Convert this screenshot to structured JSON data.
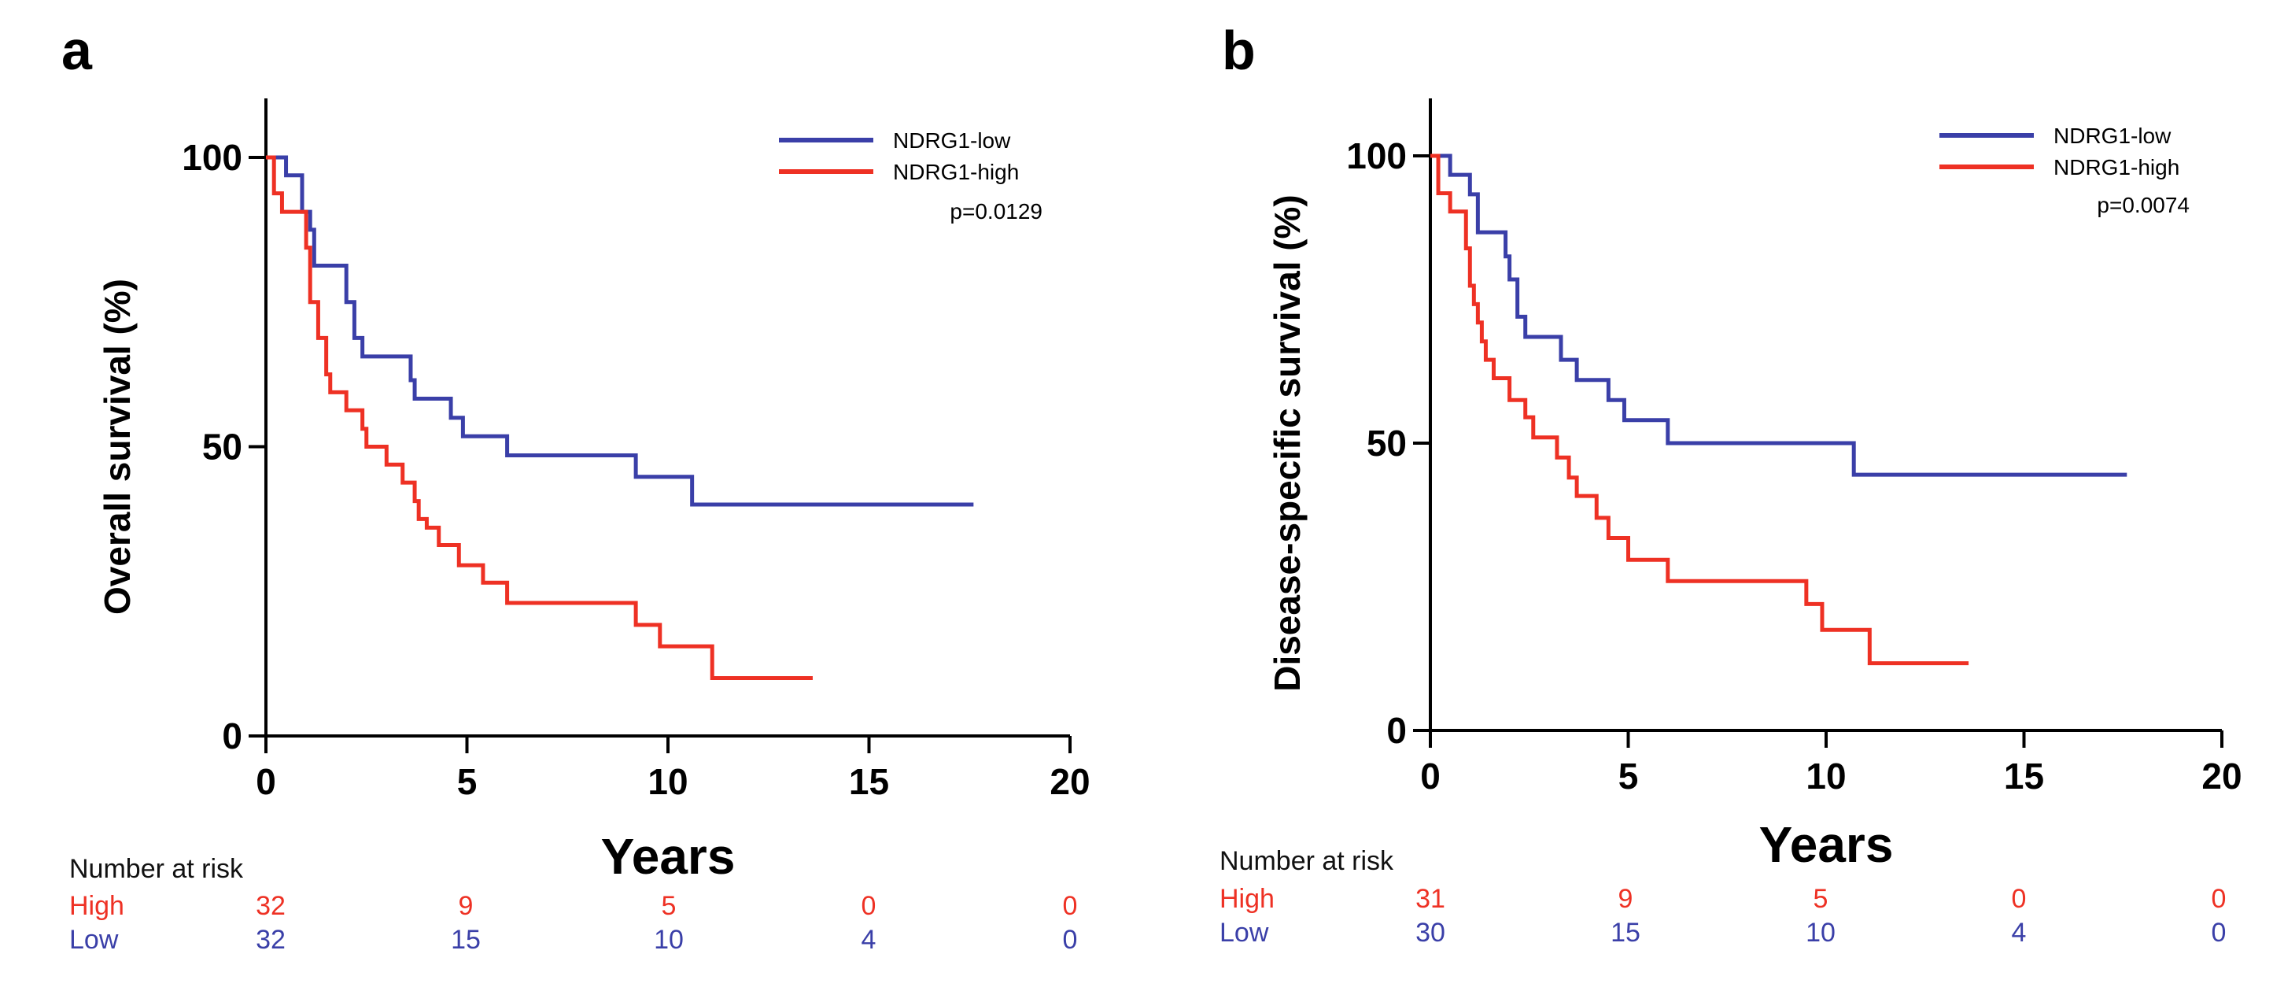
{
  "chart_data": [
    {
      "panel": "a",
      "type": "line",
      "ylabel": "Overall survival (%)",
      "xlabel": "Years",
      "xlim": [
        0,
        20
      ],
      "ylim": [
        0,
        100
      ],
      "xticks": [
        0,
        5,
        10,
        15,
        20
      ],
      "yticks": [
        0,
        50,
        100
      ],
      "legend_position": "top-right",
      "pvalue": "p=0.0129",
      "series": [
        {
          "name": "NDRG1-low",
          "color": "#3a3fa8",
          "steps": [
            [
              0,
              100
            ],
            [
              0.5,
              96.9
            ],
            [
              0.9,
              90.6
            ],
            [
              1.1,
              87.5
            ],
            [
              1.2,
              81.3
            ],
            [
              2.0,
              75.0
            ],
            [
              2.2,
              68.8
            ],
            [
              2.4,
              65.6
            ],
            [
              3.6,
              61.5
            ],
            [
              3.7,
              58.3
            ],
            [
              4.6,
              55.0
            ],
            [
              4.9,
              51.8
            ],
            [
              6.0,
              48.5
            ],
            [
              9.2,
              44.8
            ],
            [
              10.6,
              40.0
            ],
            [
              17.6,
              40.0
            ]
          ]
        },
        {
          "name": "NDRG1-high",
          "color": "#ee3124",
          "steps": [
            [
              0,
              100
            ],
            [
              0.2,
              93.8
            ],
            [
              0.4,
              90.6
            ],
            [
              1.0,
              84.4
            ],
            [
              1.1,
              75.0
            ],
            [
              1.3,
              68.8
            ],
            [
              1.5,
              62.5
            ],
            [
              1.6,
              59.4
            ],
            [
              2.0,
              56.3
            ],
            [
              2.4,
              53.1
            ],
            [
              2.5,
              50.0
            ],
            [
              3.0,
              46.9
            ],
            [
              3.4,
              43.8
            ],
            [
              3.7,
              40.6
            ],
            [
              3.8,
              37.5
            ],
            [
              4.0,
              36.0
            ],
            [
              4.3,
              33.0
            ],
            [
              4.8,
              29.5
            ],
            [
              5.4,
              26.5
            ],
            [
              6.0,
              23.0
            ],
            [
              9.2,
              19.2
            ],
            [
              9.8,
              15.5
            ],
            [
              11.1,
              10.0
            ],
            [
              13.6,
              10.0
            ]
          ]
        }
      ],
      "number_at_risk": {
        "title": "Number at risk",
        "rows": [
          {
            "label": "High",
            "values": [
              "32",
              "9",
              "5",
              "0",
              "0"
            ],
            "color": "#ee3124"
          },
          {
            "label": "Low",
            "values": [
              "32",
              "15",
              "10",
              "4",
              "0"
            ],
            "color": "#3a3fa8"
          }
        ]
      }
    },
    {
      "panel": "b",
      "type": "line",
      "ylabel": "Disease-specific survival (%)",
      "xlabel": "Years",
      "xlim": [
        0,
        20
      ],
      "ylim": [
        0,
        100
      ],
      "xticks": [
        0,
        5,
        10,
        15,
        20
      ],
      "yticks": [
        0,
        50,
        100
      ],
      "legend_position": "top-right",
      "pvalue": "p=0.0074",
      "series": [
        {
          "name": "NDRG1-low",
          "color": "#3a3fa8",
          "steps": [
            [
              0,
              100
            ],
            [
              0.5,
              96.7
            ],
            [
              1.0,
              93.3
            ],
            [
              1.2,
              86.7
            ],
            [
              1.9,
              82.5
            ],
            [
              2.0,
              78.5
            ],
            [
              2.2,
              72.0
            ],
            [
              2.4,
              68.5
            ],
            [
              3.3,
              64.5
            ],
            [
              3.7,
              61.0
            ],
            [
              4.5,
              57.5
            ],
            [
              4.9,
              54.0
            ],
            [
              6.0,
              50.0
            ],
            [
              10.7,
              44.5
            ],
            [
              17.6,
              44.5
            ]
          ]
        },
        {
          "name": "NDRG1-high",
          "color": "#ee3124",
          "steps": [
            [
              0,
              100
            ],
            [
              0.2,
              93.5
            ],
            [
              0.5,
              90.3
            ],
            [
              0.9,
              83.9
            ],
            [
              1.0,
              77.4
            ],
            [
              1.1,
              74.2
            ],
            [
              1.2,
              71.0
            ],
            [
              1.3,
              67.7
            ],
            [
              1.4,
              64.5
            ],
            [
              1.6,
              61.3
            ],
            [
              2.0,
              57.5
            ],
            [
              2.4,
              54.5
            ],
            [
              2.6,
              51.0
            ],
            [
              3.2,
              47.5
            ],
            [
              3.5,
              44.0
            ],
            [
              3.7,
              40.8
            ],
            [
              4.2,
              37.0
            ],
            [
              4.5,
              33.5
            ],
            [
              5.0,
              29.7
            ],
            [
              6.0,
              26.0
            ],
            [
              9.5,
              22.0
            ],
            [
              9.9,
              17.5
            ],
            [
              11.1,
              11.7
            ],
            [
              13.6,
              11.7
            ]
          ]
        }
      ],
      "number_at_risk": {
        "title": "Number at risk",
        "rows": [
          {
            "label": "High",
            "values": [
              "31",
              "9",
              "5",
              "0",
              "0"
            ],
            "color": "#ee3124"
          },
          {
            "label": "Low",
            "values": [
              "30",
              "15",
              "10",
              "4",
              "0"
            ],
            "color": "#3a3fa8"
          }
        ]
      }
    }
  ]
}
